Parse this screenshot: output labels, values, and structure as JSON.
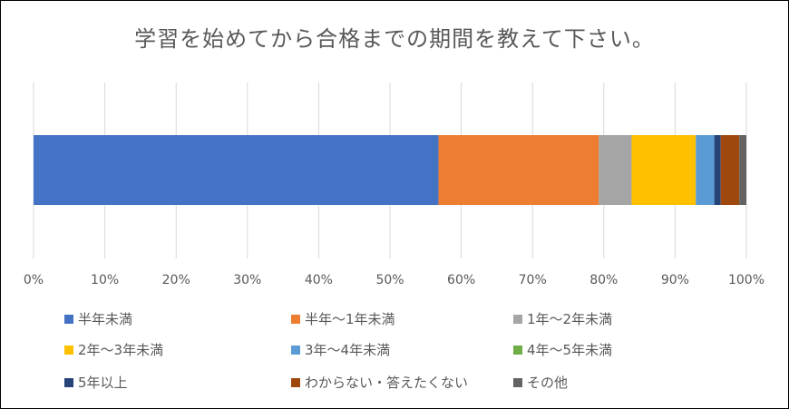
{
  "chart_data": {
    "type": "bar",
    "orientation": "horizontal",
    "stacked": true,
    "percent_stacked": true,
    "title": "学習を始めてから合格までの期間を教えて下さい。",
    "categories": [
      ""
    ],
    "series": [
      {
        "name": "半年未満",
        "values": [
          56.8
        ],
        "color": "#4472c4"
      },
      {
        "name": "半年～1年未満",
        "values": [
          22.5
        ],
        "color": "#ed7d31"
      },
      {
        "name": "1年～2年未満",
        "values": [
          4.6
        ],
        "color": "#a5a5a5"
      },
      {
        "name": "2年～3年未満",
        "values": [
          9.0
        ],
        "color": "#ffc000"
      },
      {
        "name": "3年～4年未満",
        "values": [
          2.6
        ],
        "color": "#5b9bd5"
      },
      {
        "name": "4年～5年未満",
        "values": [
          0.0
        ],
        "color": "#70ad47"
      },
      {
        "name": "5年以上",
        "values": [
          0.9
        ],
        "color": "#264478"
      },
      {
        "name": "わからない・答えたくない",
        "values": [
          2.6
        ],
        "color": "#9e480e"
      },
      {
        "name": "その他",
        "values": [
          1.0
        ],
        "color": "#636363"
      }
    ],
    "xlim": [
      0,
      100
    ],
    "x_ticks": [
      "0%",
      "10%",
      "20%",
      "30%",
      "40%",
      "50%",
      "60%",
      "70%",
      "80%",
      "90%",
      "100%"
    ],
    "grid": true,
    "legend_position": "bottom"
  }
}
